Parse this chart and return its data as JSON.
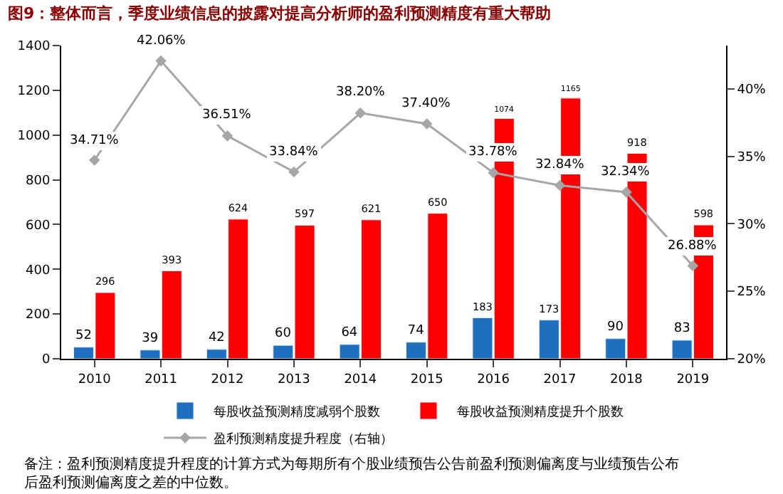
{
  "chart_data": {
    "type": "bar",
    "title": "图9：整体而言，季度业绩信息的披露对提高分析师的盈利预测精度有重大帮助",
    "categories": [
      "2010",
      "2011",
      "2012",
      "2013",
      "2014",
      "2015",
      "2016",
      "2017",
      "2018",
      "2019"
    ],
    "series": [
      {
        "name": "每股收益预测精度减弱个股数",
        "color": "#1f6fbf",
        "values": [
          52,
          39,
          42,
          60,
          64,
          74,
          183,
          173,
          90,
          83
        ]
      },
      {
        "name": "每股收益预测精度提升个股数",
        "color": "#ff0000",
        "values": [
          296,
          393,
          624,
          597,
          621,
          650,
          1074,
          1165,
          918,
          598
        ]
      },
      {
        "name": "盈利预测精度提升程度（右轴）",
        "type": "line",
        "axis": "y2",
        "color": "#a6a6a6",
        "marker": "diamond",
        "values": [
          34.71,
          42.06,
          36.51,
          33.84,
          38.2,
          37.4,
          33.78,
          32.84,
          32.34,
          26.88
        ],
        "value_labels": [
          "34.71%",
          "42.06%",
          "36.51%",
          "33.84%",
          "38.20%",
          "37.40%",
          "33.78%",
          "32.84%",
          "32.34%",
          "26.88%"
        ]
      }
    ],
    "data_labels": true,
    "ylim": [
      0,
      1400
    ],
    "yticks": [
      0,
      200,
      400,
      600,
      800,
      1000,
      1200,
      1400
    ],
    "y2lim": [
      20,
      43.2
    ],
    "y2ticks": [
      {
        "value": 20,
        "label": "20%"
      },
      {
        "value": 25,
        "label": "25%"
      },
      {
        "value": 30,
        "label": "30%"
      },
      {
        "value": 35,
        "label": "35%"
      },
      {
        "value": 40,
        "label": "40%"
      }
    ],
    "legend": "bottom",
    "annotations": [
      "备注：盈利预测精度提升程度的计算方式为每期所有个股业绩预告公告前盈利预测偏离度与业绩预告公布后盈利预测偏离度之差的中位数。"
    ]
  }
}
